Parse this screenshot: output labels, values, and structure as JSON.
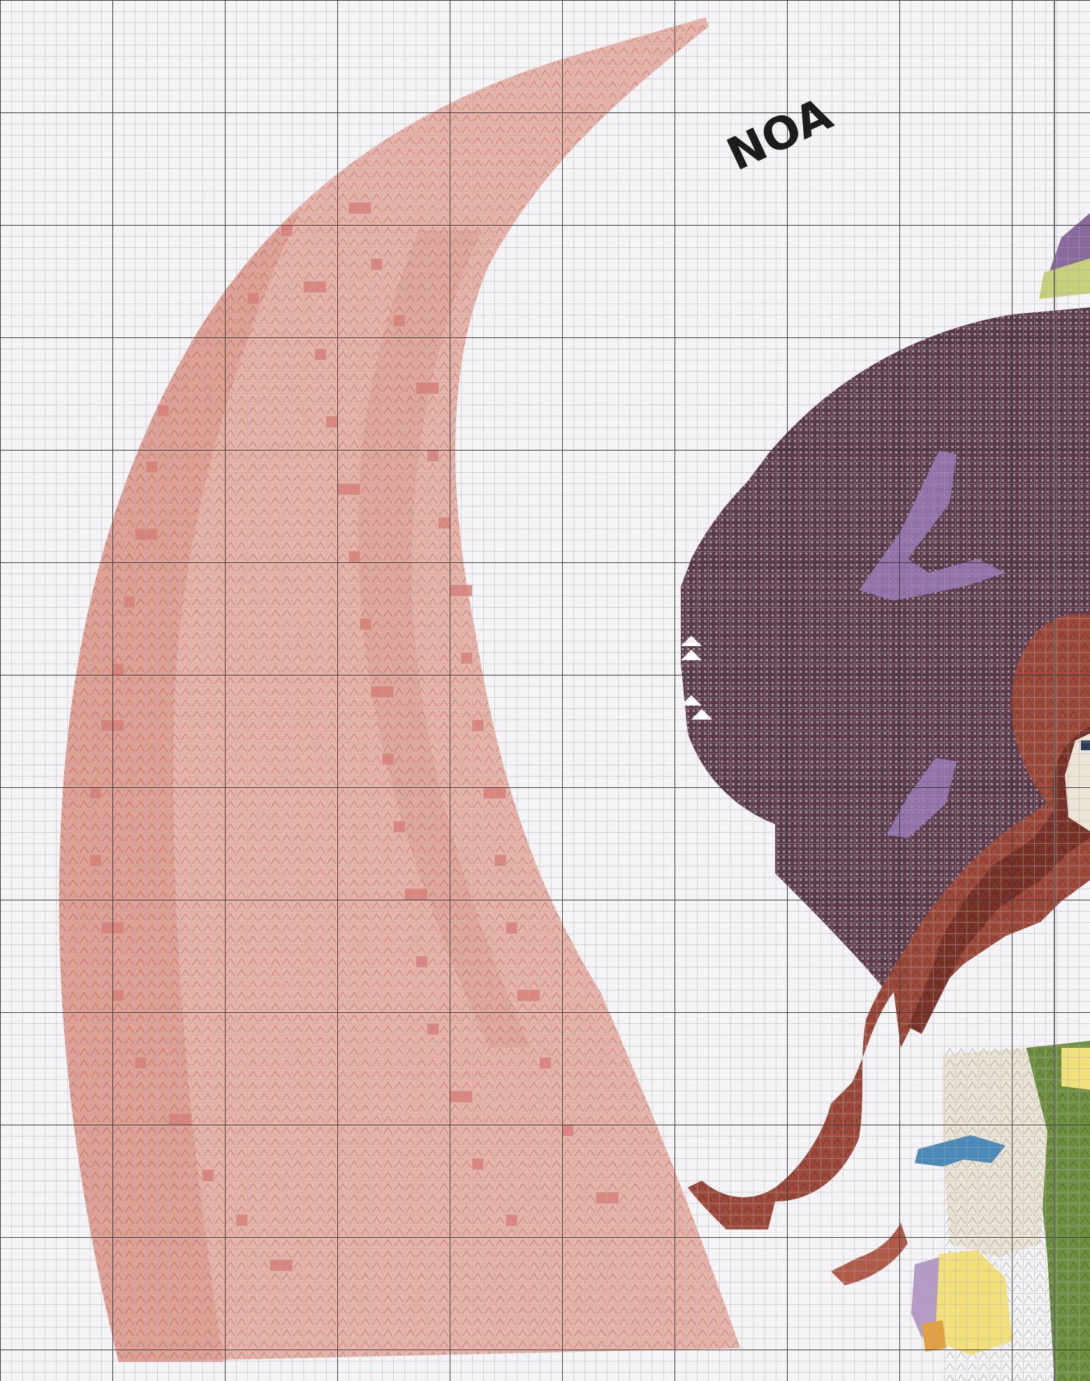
{
  "pattern": {
    "handwritten_note": "NOA",
    "colors": {
      "fabric": "#f4f4f6",
      "grid_minor": "#a9a9b2",
      "grid_major": "#3a3a3a",
      "moon_light": "#e9b3a8",
      "moon_mid": "#de9b8f",
      "moon_dark": "#d67e78",
      "hat_dark": "#5a3a48",
      "hat_highlight": "#9a7ab8",
      "hair": "#9e4a3a",
      "hair_dark": "#7a3328",
      "face": "#ece4d4",
      "dress_green": "#6f9040",
      "ribbon_blue": "#4a8ab8",
      "yellow": "#f2e07a",
      "lilac": "#b39bc6",
      "orange": "#e0a040"
    },
    "regions": [
      {
        "name": "crescent-moon",
        "icon": "crescent-moon-icon"
      },
      {
        "name": "witch-hat",
        "icon": "hat-icon"
      },
      {
        "name": "hair",
        "icon": "hair-icon"
      },
      {
        "name": "face",
        "icon": "face-icon"
      },
      {
        "name": "dress",
        "icon": "dress-icon"
      },
      {
        "name": "ribbon",
        "icon": "ribbon-icon"
      }
    ]
  }
}
